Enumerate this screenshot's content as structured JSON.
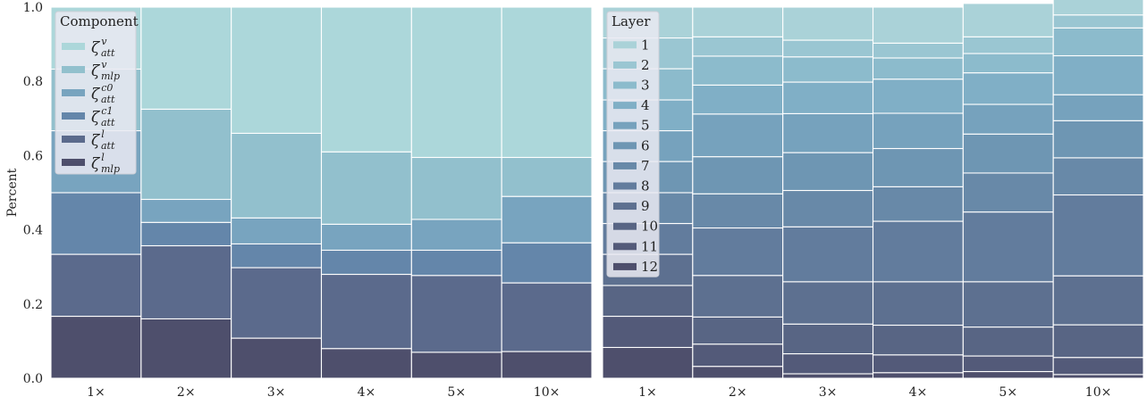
{
  "chart_data": [
    {
      "type": "bar",
      "stacked": true,
      "ylabel": "Percent",
      "ylim": [
        0,
        1.0
      ],
      "yticks": [
        "0.0",
        "0.2",
        "0.4",
        "0.6",
        "0.8",
        "1.0"
      ],
      "categories": [
        "1×",
        "2×",
        "3×",
        "4×",
        "5×",
        "10×"
      ],
      "legend_title": "Component",
      "legend_position": "top-left",
      "series": [
        {
          "name": "ζ",
          "sup": "l",
          "sub": "mlp",
          "color": "#4e4f6c",
          "values": [
            0.167,
            0.16,
            0.108,
            0.08,
            0.07,
            0.072
          ]
        },
        {
          "name": "ζ",
          "sup": "l",
          "sub": "att",
          "color": "#5b6a8c",
          "values": [
            0.167,
            0.197,
            0.19,
            0.2,
            0.207,
            0.185
          ]
        },
        {
          "name": "ζ",
          "sup": "c1",
          "sub": "att",
          "color": "#6486aa",
          "values": [
            0.166,
            0.063,
            0.064,
            0.065,
            0.068,
            0.108
          ]
        },
        {
          "name": "ζ",
          "sup": "c0",
          "sub": "att",
          "color": "#78a4bf",
          "values": [
            0.167,
            0.062,
            0.07,
            0.07,
            0.083,
            0.125
          ]
        },
        {
          "name": "ζ",
          "sup": "v",
          "sub": "mlp",
          "color": "#92c0cd",
          "values": [
            0.166,
            0.243,
            0.228,
            0.195,
            0.167,
            0.105
          ]
        },
        {
          "name": "ζ",
          "sup": "v",
          "sub": "att",
          "color": "#acd7da",
          "values": [
            0.167,
            0.275,
            0.34,
            0.39,
            0.405,
            0.405
          ]
        }
      ]
    },
    {
      "type": "bar",
      "stacked": true,
      "ylim": [
        0,
        1.0
      ],
      "categories": [
        "1×",
        "2×",
        "3×",
        "4×",
        "5×",
        "10×"
      ],
      "legend_title": "Layer",
      "legend_position": "top-left",
      "series": [
        {
          "name": "12",
          "color": "#4e4f6c",
          "values": [
            0.083,
            0.032,
            0.012,
            0.015,
            0.018,
            0.01
          ]
        },
        {
          "name": "11",
          "color": "#535a79",
          "values": [
            0.084,
            0.06,
            0.054,
            0.048,
            0.042,
            0.046
          ]
        },
        {
          "name": "10",
          "color": "#586584",
          "values": [
            0.083,
            0.073,
            0.08,
            0.08,
            0.078,
            0.088
          ]
        },
        {
          "name": "9",
          "color": "#5d7090",
          "values": [
            0.084,
            0.112,
            0.114,
            0.117,
            0.122,
            0.132
          ]
        },
        {
          "name": "8",
          "color": "#627c9d",
          "values": [
            0.083,
            0.128,
            0.148,
            0.163,
            0.188,
            0.218
          ]
        },
        {
          "name": "7",
          "color": "#6889a8",
          "values": [
            0.083,
            0.092,
            0.098,
            0.093,
            0.105,
            0.1
          ]
        },
        {
          "name": "6",
          "color": "#6e96b3",
          "values": [
            0.084,
            0.1,
            0.102,
            0.103,
            0.105,
            0.1
          ]
        },
        {
          "name": "5",
          "color": "#76a2bd",
          "values": [
            0.083,
            0.115,
            0.105,
            0.095,
            0.08,
            0.07
          ]
        },
        {
          "name": "4",
          "color": "#80afc6",
          "values": [
            0.083,
            0.078,
            0.085,
            0.092,
            0.085,
            0.105
          ]
        },
        {
          "name": "3",
          "color": "#8cbbcc",
          "values": [
            0.084,
            0.078,
            0.068,
            0.057,
            0.052,
            0.075
          ]
        },
        {
          "name": "2",
          "color": "#9ac6d2",
          "values": [
            0.083,
            0.052,
            0.045,
            0.04,
            0.045,
            0.035
          ]
        },
        {
          "name": "1",
          "color": "#aad2d8",
          "values": [
            0.083,
            0.08,
            0.089,
            0.097,
            0.09,
            0.044
          ]
        }
      ]
    }
  ]
}
